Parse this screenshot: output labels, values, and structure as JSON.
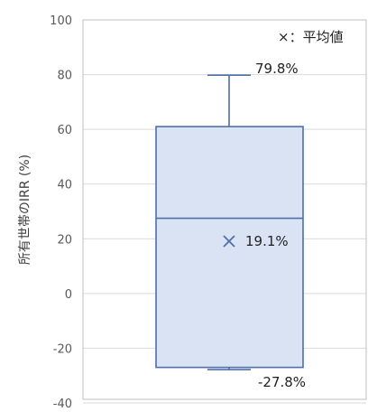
{
  "chart_data": {
    "type": "box",
    "ylabel": "所有世帯のIRR (%)",
    "ylim": [
      -40,
      100
    ],
    "y_ticks": [
      100,
      80,
      60,
      40,
      20,
      0,
      -20,
      -40
    ],
    "grid": true,
    "legend_text": "×：平均値",
    "legend_position": "top-right",
    "box": {
      "max": 79.8,
      "q3": 61,
      "median": 27.5,
      "q1": -27,
      "min": -27.8,
      "mean": 19.1
    },
    "labels": {
      "max": "79.8%",
      "mean": "19.1%",
      "min": "-27.8%"
    },
    "colors": {
      "box_fill": "#dae3f3",
      "box_stroke": "#4f6fa8",
      "grid": "#d9d9d9",
      "frame": "#bfbfbf"
    }
  }
}
